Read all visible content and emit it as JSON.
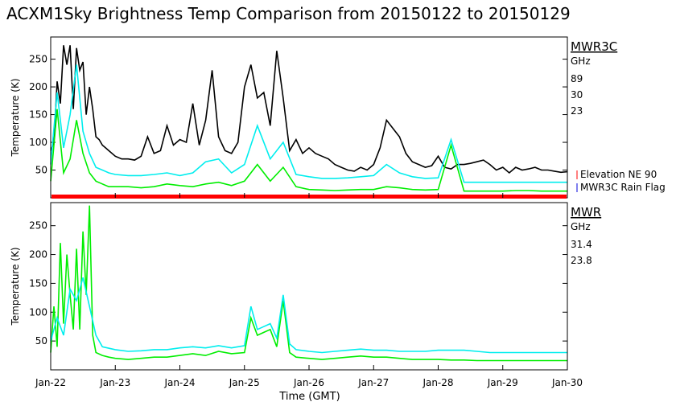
{
  "title": "ACXM1Sky Brightness Temp Comparison from 20150122 to 20150129",
  "xlabel": "Time (GMT)",
  "x_ticks": [
    "Jan-22",
    "Jan-23",
    "Jan-24",
    "Jan-25",
    "Jan-26",
    "Jan-27",
    "Jan-28",
    "Jan-29",
    "Jan-30"
  ],
  "colors": {
    "black": "#000000",
    "green": "#00ee00",
    "cyan": "#00eeee",
    "red": "#ff0000",
    "blue": "#0000dd"
  },
  "chart_data": [
    {
      "type": "line",
      "panel": "top",
      "title": "ACXM1Sky Brightness Temp Comparison from 20150122 to 20150129",
      "ylabel": "Temperature (K)",
      "xlabel": "",
      "xlim": [
        0,
        8
      ],
      "ylim": [
        0,
        290
      ],
      "y_ticks": [
        50,
        100,
        150,
        200,
        250
      ],
      "legend_title": "MWR3C",
      "legend_unit": "GHz",
      "series": [
        {
          "name": "89",
          "color": "#000000",
          "x": [
            0,
            0.05,
            0.1,
            0.15,
            0.2,
            0.25,
            0.3,
            0.35,
            0.4,
            0.45,
            0.5,
            0.55,
            0.6,
            0.65,
            0.7,
            0.75,
            0.8,
            0.85,
            0.9,
            1.0,
            1.1,
            1.2,
            1.3,
            1.4,
            1.5,
            1.6,
            1.7,
            1.8,
            1.9,
            2.0,
            2.1,
            2.2,
            2.3,
            2.4,
            2.5,
            2.6,
            2.7,
            2.8,
            2.9,
            3.0,
            3.1,
            3.2,
            3.3,
            3.4,
            3.5,
            3.6,
            3.7,
            3.8,
            3.9,
            4.0,
            4.1,
            4.2,
            4.3,
            4.4,
            4.5,
            4.6,
            4.7,
            4.8,
            4.9,
            5.0,
            5.1,
            5.2,
            5.3,
            5.4,
            5.5,
            5.6,
            5.7,
            5.8,
            5.9,
            6.0,
            6.1,
            6.2,
            6.3,
            6.4,
            6.5,
            6.6,
            6.7,
            6.8,
            6.9,
            7.0,
            7.1,
            7.2,
            7.3,
            7.4,
            7.5,
            7.6,
            7.7,
            7.8,
            7.9,
            8.0
          ],
          "values": [
            85,
            100,
            210,
            170,
            275,
            240,
            275,
            160,
            270,
            230,
            245,
            150,
            200,
            160,
            110,
            105,
            95,
            90,
            85,
            75,
            70,
            70,
            68,
            75,
            110,
            80,
            85,
            130,
            95,
            105,
            100,
            170,
            95,
            140,
            230,
            110,
            85,
            80,
            100,
            200,
            240,
            180,
            190,
            130,
            265,
            180,
            85,
            105,
            80,
            90,
            80,
            75,
            70,
            60,
            55,
            50,
            48,
            55,
            50,
            60,
            90,
            140,
            125,
            110,
            80,
            65,
            60,
            55,
            58,
            75,
            55,
            52,
            60,
            60,
            62,
            65,
            68,
            60,
            50,
            55,
            45,
            55,
            50,
            52,
            55,
            50,
            50,
            48,
            46,
            47
          ]
        },
        {
          "name": "30",
          "color": "#00ee00",
          "x": [
            0,
            0.1,
            0.2,
            0.3,
            0.4,
            0.5,
            0.6,
            0.7,
            0.8,
            0.9,
            1.0,
            1.2,
            1.4,
            1.6,
            1.8,
            2.0,
            2.2,
            2.4,
            2.6,
            2.8,
            3.0,
            3.2,
            3.4,
            3.6,
            3.8,
            4.0,
            4.2,
            4.4,
            4.6,
            4.8,
            5.0,
            5.2,
            5.4,
            5.6,
            5.8,
            6.0,
            6.2,
            6.4,
            6.6,
            6.8,
            7.0,
            7.2,
            7.4,
            7.6,
            7.8,
            8.0
          ],
          "values": [
            30,
            160,
            45,
            70,
            140,
            80,
            45,
            30,
            25,
            20,
            20,
            20,
            18,
            20,
            25,
            22,
            20,
            25,
            28,
            22,
            30,
            60,
            30,
            55,
            20,
            15,
            14,
            13,
            14,
            15,
            15,
            20,
            18,
            15,
            14,
            15,
            95,
            12,
            12,
            12,
            12,
            13,
            13,
            12,
            12,
            12
          ]
        },
        {
          "name": "23",
          "color": "#00eeee",
          "x": [
            0,
            0.1,
            0.2,
            0.3,
            0.4,
            0.5,
            0.6,
            0.7,
            0.8,
            0.9,
            1.0,
            1.2,
            1.4,
            1.6,
            1.8,
            2.0,
            2.2,
            2.4,
            2.6,
            2.8,
            3.0,
            3.2,
            3.4,
            3.6,
            3.8,
            4.0,
            4.2,
            4.4,
            4.6,
            4.8,
            5.0,
            5.2,
            5.4,
            5.6,
            5.8,
            6.0,
            6.2,
            6.4,
            6.6,
            6.8,
            7.0,
            7.2,
            7.4,
            7.6,
            7.8,
            8.0
          ],
          "values": [
            60,
            190,
            90,
            150,
            240,
            120,
            80,
            55,
            50,
            45,
            42,
            40,
            40,
            42,
            45,
            40,
            45,
            65,
            70,
            45,
            60,
            130,
            70,
            100,
            42,
            38,
            35,
            35,
            36,
            38,
            40,
            60,
            45,
            38,
            35,
            36,
            105,
            28,
            28,
            28,
            28,
            28,
            28,
            28,
            28,
            28
          ]
        }
      ],
      "annotations": [
        "Elevation NE 90",
        "MWR3C Rain Flag"
      ]
    },
    {
      "type": "line",
      "panel": "bottom",
      "ylabel": "Temperature (K)",
      "xlabel": "Time (GMT)",
      "xlim": [
        0,
        8
      ],
      "ylim": [
        0,
        290
      ],
      "y_ticks": [
        50,
        100,
        150,
        200,
        250
      ],
      "legend_title": "MWR",
      "legend_unit": "GHz",
      "series": [
        {
          "name": "31.4",
          "color": "#00ee00",
          "x": [
            0,
            0.05,
            0.1,
            0.15,
            0.2,
            0.25,
            0.3,
            0.35,
            0.4,
            0.45,
            0.5,
            0.55,
            0.6,
            0.65,
            0.7,
            0.8,
            0.9,
            1.0,
            1.2,
            1.4,
            1.6,
            1.8,
            2.0,
            2.2,
            2.4,
            2.6,
            2.8,
            3.0,
            3.1,
            3.2,
            3.3,
            3.4,
            3.5,
            3.6,
            3.7,
            3.8,
            4.0,
            4.2,
            4.4,
            4.6,
            4.8,
            5.0,
            5.2,
            5.4,
            5.6,
            5.8,
            6.0,
            6.2,
            6.4,
            6.6,
            6.8,
            7.0,
            7.2,
            7.4,
            7.6,
            7.8,
            8.0
          ],
          "values": [
            30,
            110,
            40,
            220,
            80,
            200,
            130,
            70,
            210,
            70,
            240,
            130,
            285,
            60,
            30,
            25,
            22,
            20,
            18,
            20,
            22,
            22,
            25,
            28,
            25,
            32,
            28,
            30,
            90,
            60,
            65,
            70,
            40,
            120,
            30,
            22,
            20,
            18,
            20,
            22,
            24,
            22,
            22,
            20,
            18,
            18,
            18,
            17,
            17,
            16,
            16,
            16,
            16,
            16,
            16,
            16,
            16
          ]
        },
        {
          "name": "23.8",
          "color": "#00eeee",
          "x": [
            0,
            0.1,
            0.2,
            0.3,
            0.4,
            0.5,
            0.6,
            0.7,
            0.8,
            1.0,
            1.2,
            1.4,
            1.6,
            1.8,
            2.0,
            2.2,
            2.4,
            2.6,
            2.8,
            3.0,
            3.1,
            3.2,
            3.3,
            3.4,
            3.5,
            3.6,
            3.7,
            3.8,
            4.0,
            4.2,
            4.4,
            4.6,
            4.8,
            5.0,
            5.2,
            5.4,
            5.6,
            5.8,
            6.0,
            6.2,
            6.4,
            6.6,
            6.8,
            7.0,
            7.2,
            7.4,
            7.6,
            7.8,
            8.0
          ],
          "values": [
            50,
            90,
            60,
            140,
            120,
            160,
            110,
            60,
            40,
            35,
            32,
            33,
            35,
            35,
            38,
            40,
            38,
            42,
            38,
            42,
            110,
            70,
            75,
            80,
            55,
            130,
            45,
            35,
            32,
            30,
            32,
            34,
            36,
            34,
            34,
            32,
            32,
            32,
            34,
            34,
            34,
            32,
            30,
            30,
            30,
            30,
            30,
            30,
            30
          ]
        }
      ]
    }
  ]
}
